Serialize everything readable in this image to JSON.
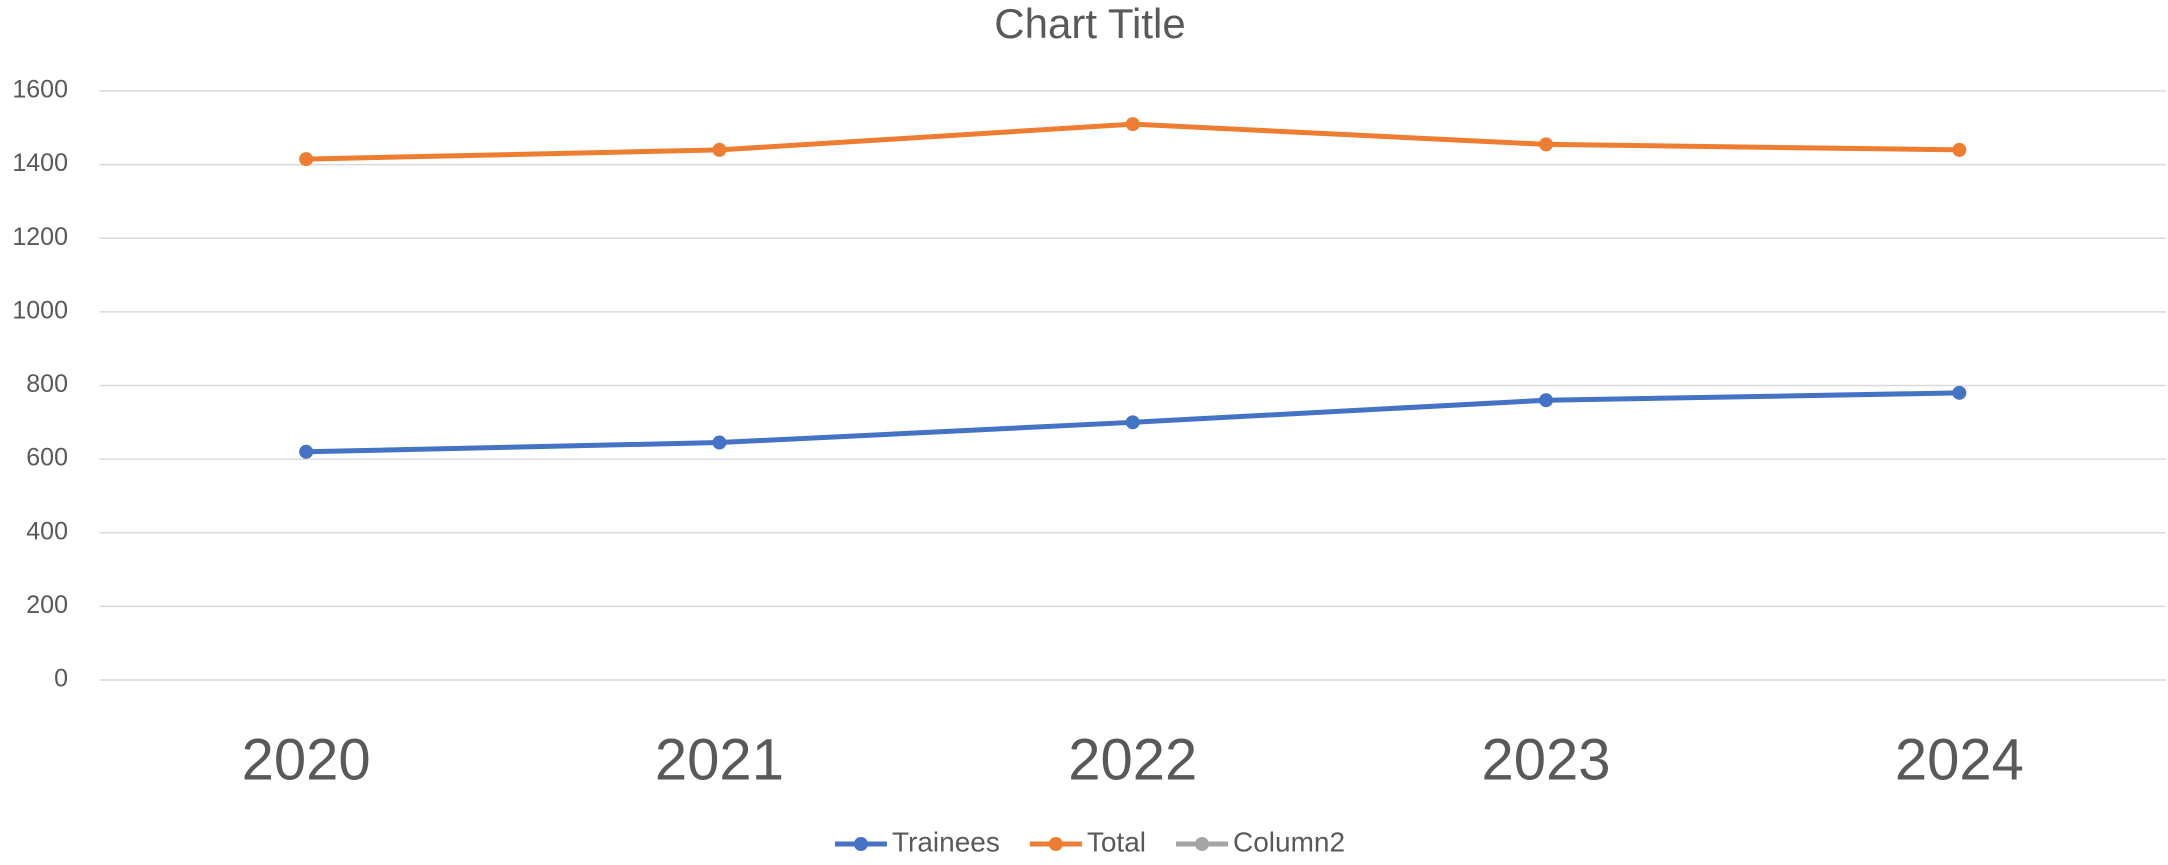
{
  "chart_data": {
    "type": "line",
    "title": "Chart Title",
    "categories": [
      "2020",
      "2021",
      "2022",
      "2023",
      "2024"
    ],
    "series": [
      {
        "name": "Trainees",
        "color": "#4472c4",
        "values": [
          620,
          645,
          700,
          760,
          780
        ]
      },
      {
        "name": "Total",
        "color": "#ed7d31",
        "values": [
          1415,
          1440,
          1510,
          1455,
          1440
        ]
      },
      {
        "name": "Column2",
        "color": "#a5a5a5",
        "values": [
          null,
          null,
          null,
          null,
          null
        ]
      }
    ],
    "ylim": [
      0,
      1600
    ],
    "yticks": [
      0,
      200,
      400,
      600,
      800,
      1000,
      1200,
      1400,
      1600
    ],
    "grid": true,
    "legend": "bottom"
  }
}
